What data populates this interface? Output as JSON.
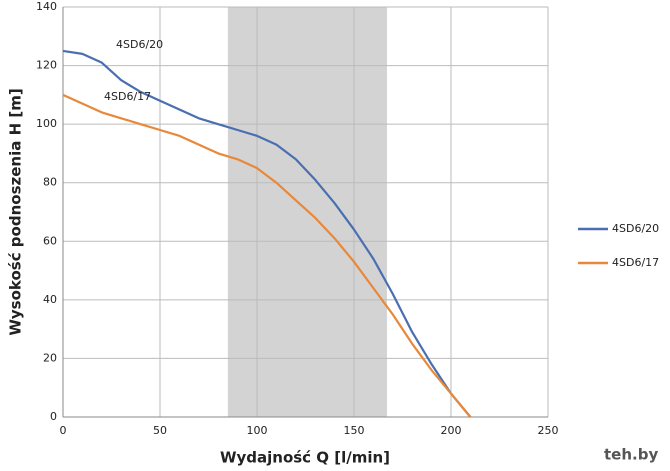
{
  "chart_data": {
    "type": "line",
    "x_label": "Wydajność Q [l/min]",
    "y_label": "Wysokość podnoszenia H [m]",
    "x": [
      0,
      10,
      20,
      30,
      40,
      50,
      60,
      70,
      80,
      90,
      100,
      110,
      120,
      130,
      140,
      150,
      160,
      170,
      180,
      190,
      200,
      210
    ],
    "series": [
      {
        "name": "4SD6/20",
        "color": "#4a6fb0",
        "values": [
          125,
          124,
          121,
          115,
          111,
          108,
          105,
          102,
          100,
          98,
          96,
          93,
          88,
          81,
          73,
          64,
          54,
          42,
          29,
          18,
          8,
          0
        ]
      },
      {
        "name": "4SD6/17",
        "color": "#e8883a",
        "values": [
          110,
          107,
          104,
          102,
          100,
          98,
          96,
          93,
          90,
          88,
          85,
          80,
          74,
          68,
          61,
          53,
          44,
          35,
          25,
          16,
          8,
          0
        ]
      }
    ],
    "annotations": [
      "4SD6/20",
      "4SD6/17"
    ],
    "shaded_region": [
      85,
      167
    ],
    "xlim": [
      0,
      250
    ],
    "xticks": [
      0,
      50,
      100,
      150,
      200,
      250
    ],
    "ylim": [
      0,
      140
    ],
    "yticks": [
      0,
      20,
      40,
      60,
      80,
      100,
      120,
      140
    ],
    "grid": true,
    "legend": "right",
    "watermark": "teh.by"
  }
}
